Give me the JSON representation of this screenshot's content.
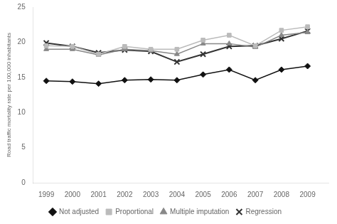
{
  "chart_data": {
    "type": "line",
    "y_label": "Road traffic mortality rate per 100,000 inhabitants",
    "x": [
      1999,
      2000,
      2001,
      2002,
      2003,
      2004,
      2005,
      2006,
      2007,
      2008,
      2009
    ],
    "xlim": [
      1998.5,
      2009.8
    ],
    "xticks": [
      1999,
      2000,
      2001,
      2002,
      2003,
      2004,
      2005,
      2006,
      2007,
      2008,
      2009
    ],
    "ylim": [
      0,
      25
    ],
    "yticks": [
      0,
      5,
      10,
      15,
      20,
      25
    ],
    "grid": false,
    "legend": "bottom",
    "series": [
      {
        "name": "Not adjusted",
        "color": "#111111",
        "marker": "diamond",
        "values": [
          14.5,
          14.4,
          14.1,
          14.6,
          14.7,
          14.6,
          15.4,
          16.1,
          14.6,
          16.1,
          16.6
        ]
      },
      {
        "name": "Proportional",
        "color": "#bbbbbb",
        "marker": "square",
        "values": [
          19.5,
          19.4,
          18.3,
          19.4,
          19.0,
          19.0,
          20.3,
          21.0,
          19.5,
          21.7,
          22.2
        ]
      },
      {
        "name": "Multiple imputation",
        "color": "#888888",
        "marker": "triangle",
        "values": [
          19.0,
          19.0,
          18.2,
          19.0,
          18.8,
          18.3,
          19.8,
          19.8,
          19.3,
          21.0,
          21.4
        ]
      },
      {
        "name": "Regression",
        "color": "#333333",
        "marker": "x",
        "values": [
          19.9,
          19.4,
          18.5,
          18.9,
          18.7,
          17.2,
          18.3,
          19.4,
          19.5,
          20.5,
          21.6
        ]
      }
    ]
  }
}
